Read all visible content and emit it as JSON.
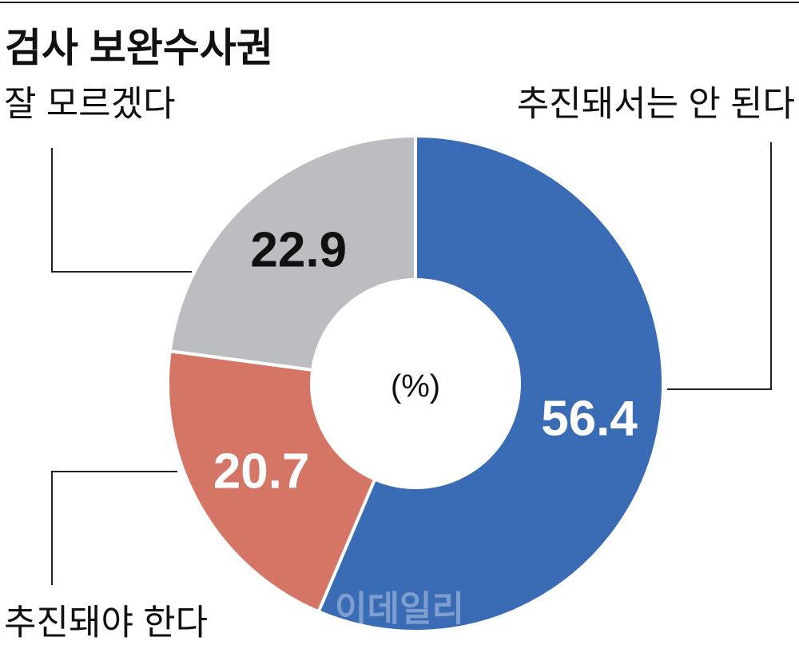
{
  "chart_data": {
    "type": "donut",
    "title": "검사 보완수사권",
    "center_label": "(%)",
    "watermark": "이데일리",
    "categories": [
      "추진돼서는 안 된다",
      "추진돼야 한다",
      "잘 모르겠다"
    ],
    "values": [
      56.4,
      20.7,
      22.9
    ],
    "colors": [
      "#3a6bb5",
      "#d57565",
      "#bcbdc0"
    ],
    "value_label_colors": [
      "#ffffff",
      "#ffffff",
      "#111111"
    ]
  }
}
